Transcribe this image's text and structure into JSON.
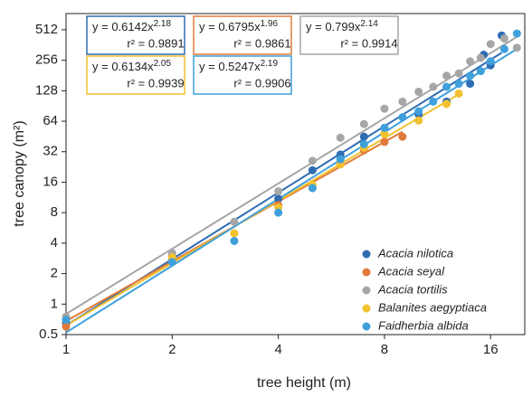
{
  "chart_data": {
    "type": "scatter",
    "xlabel": "tree height (m)",
    "ylabel": "tree canopy (m²)",
    "log_x": true,
    "log_y": true,
    "xlim": [
      1,
      20
    ],
    "ylim": [
      0.5,
      740
    ],
    "xticks": [
      1,
      2,
      4,
      8,
      16
    ],
    "yticks": [
      0.5,
      1,
      2,
      4,
      8,
      16,
      32,
      64,
      128,
      256,
      512
    ],
    "legend": "lower right",
    "series": [
      {
        "name": "Acacia nilotica",
        "color": "#2f6db3",
        "x": [
          1,
          2,
          4,
          5,
          6,
          7,
          8,
          10,
          12,
          14,
          15.3,
          16,
          17.2
        ],
        "values": [
          0.65,
          3.0,
          11,
          21,
          30,
          45,
          55,
          75,
          100,
          150,
          290,
          228,
          450
        ],
        "fit": {
          "a": 0.6142,
          "b": 2.18,
          "equation": "y = 0.6142x",
          "exponent": "2.18",
          "r2_label": "r² = 0.9891"
        }
      },
      {
        "name": "Acacia seyal",
        "color": "#e07b39",
        "x": [
          1,
          2,
          4,
          5,
          6,
          7,
          8,
          9
        ],
        "values": [
          0.6,
          2.7,
          9.5,
          14,
          24,
          33,
          40,
          45
        ],
        "fit": {
          "a": 0.6795,
          "b": 1.96,
          "equation": "y = 0.6795x",
          "exponent": "1.96",
          "r2_label": "r² = 0.9861"
        }
      },
      {
        "name": "Acacia tortilis",
        "color": "#a6a6a6",
        "x": [
          1,
          2,
          3,
          4,
          5,
          6,
          7,
          8,
          9,
          10,
          11,
          12,
          13,
          14,
          15,
          16,
          17.5,
          19
        ],
        "values": [
          0.75,
          3.2,
          6.5,
          13,
          26,
          44,
          60,
          85,
          100,
          125,
          140,
          180,
          190,
          250,
          270,
          370,
          420,
          340
        ],
        "fit": {
          "a": 0.799,
          "b": 2.14,
          "equation": "y = 0.799x",
          "exponent": "2.14",
          "r2_label": "r² = 0.9914"
        }
      },
      {
        "name": "Balanites aegyptiaca",
        "color": "#f2c12e",
        "x": [
          1,
          2,
          3,
          4,
          5,
          6,
          7,
          8,
          10,
          12,
          13
        ],
        "values": [
          0.7,
          2.9,
          5,
          9,
          15,
          24,
          35,
          48,
          65,
          95,
          120
        ],
        "fit": {
          "a": 0.6134,
          "b": 2.05,
          "equation": "y = 0.6134x",
          "exponent": "2.05",
          "r2_label": "r² = 0.9939"
        }
      },
      {
        "name": "Faidherbia albida",
        "color": "#3fa0dc",
        "x": [
          1,
          2,
          3,
          4,
          5,
          6,
          7,
          8,
          9,
          10,
          11,
          12,
          13,
          14,
          15,
          16,
          17.5,
          19
        ],
        "values": [
          0.7,
          2.6,
          4.2,
          8,
          14,
          27,
          38,
          55,
          70,
          80,
          100,
          140,
          150,
          180,
          200,
          250,
          330,
          470
        ],
        "fit": {
          "a": 0.5247,
          "b": 2.19,
          "equation": "y = 0.5247x",
          "exponent": "2.19",
          "r2_label": "r² = 0.9906"
        }
      }
    ]
  }
}
